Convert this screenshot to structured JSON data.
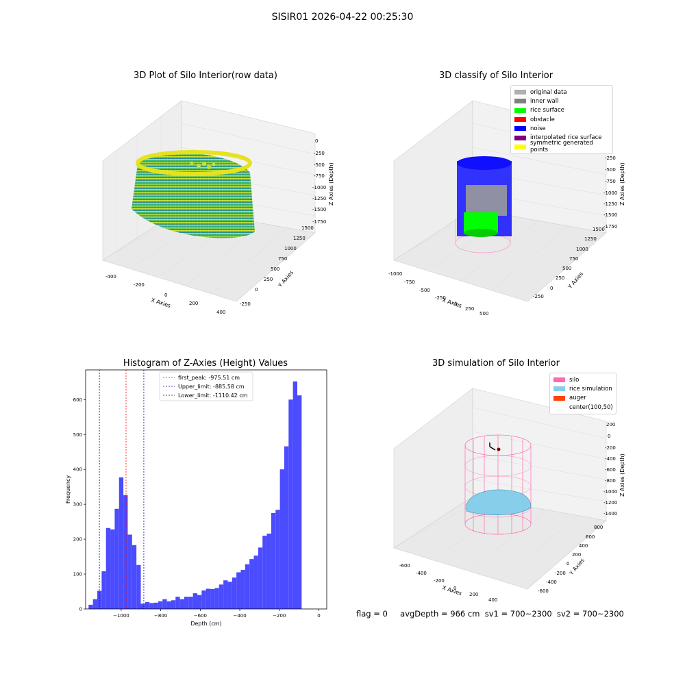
{
  "suptitle": "SISIR01 2026-04-22 00:25:30",
  "panels": {
    "raw": {
      "title": "3D Plot of Silo Interior(row data)",
      "xlabel": "X Axies",
      "ylabel": "Y Axies",
      "zlabel": "Z Axies (Depth)",
      "xticks": [
        "-400",
        "-200",
        "0",
        "200",
        "400"
      ],
      "yticks": [
        "-250",
        "0",
        "250",
        "500",
        "750",
        "1000",
        "1250",
        "1500"
      ],
      "zticks": [
        "0",
        "-250",
        "-500",
        "-750",
        "-1000",
        "-1250",
        "-1500",
        "-1750"
      ]
    },
    "classify": {
      "title": "3D classify of Silo Interior",
      "xlabel": "X Axies",
      "ylabel": "Y Axies",
      "zlabel": "Z Axies (Depth)",
      "xticks": [
        "-1000",
        "-750",
        "-500",
        "-250",
        "0",
        "250",
        "500",
        "750",
        "1000"
      ],
      "yticks": [
        "-250",
        "0",
        "250",
        "500",
        "750",
        "1000",
        "1250",
        "1500"
      ],
      "zticks": [
        "0",
        "-250",
        "-500",
        "-750",
        "-1000",
        "-1250",
        "-1500",
        "-1750"
      ],
      "legend": [
        {
          "label": "original data",
          "color": "#b0b0b0"
        },
        {
          "label": "inner wall",
          "color": "#808080"
        },
        {
          "label": "rice surface",
          "color": "#00ff00"
        },
        {
          "label": "obstacle",
          "color": "#ff0000"
        },
        {
          "label": "noise",
          "color": "#0000ff"
        },
        {
          "label": "interpolated rice surface",
          "color": "#800080"
        },
        {
          "label": "symmetric generated points",
          "color": "#ffff00"
        }
      ]
    },
    "simulation": {
      "title": "3D simulation of Silo Interior",
      "xlabel": "X Axies",
      "ylabel": "Y Axies",
      "zlabel": "Z Axies (Depth)",
      "xticks": [
        "-600",
        "-400",
        "-200",
        "0",
        "200",
        "400",
        "600",
        "800"
      ],
      "yticks": [
        "-600",
        "-400",
        "-200",
        "0",
        "200",
        "400",
        "600",
        "800"
      ],
      "zticks": [
        "200",
        "0",
        "-200",
        "-400",
        "-600",
        "-800",
        "-1000",
        "-1200",
        "-1400"
      ],
      "legend": [
        {
          "label": "silo",
          "color": "#ff69b4"
        },
        {
          "label": "rice simulation",
          "color": "#87ceeb"
        },
        {
          "label": "auger",
          "color": "#ff4500"
        },
        {
          "label": "center(100,50)",
          "color": ""
        }
      ]
    }
  },
  "footer": {
    "flag": "flag = 0",
    "avg": "avgDepth = 966 cm",
    "sv1": "sv1 = 700~2300",
    "sv2": "sv2 = 700~2300"
  },
  "chart_data": [
    {
      "type": "bar",
      "title": "Histogram of Z-Axies (Height) Values",
      "xlabel": "Depth (cm)",
      "ylabel": "Frequency",
      "xlim": [
        -1180,
        40
      ],
      "ylim": [
        0,
        685
      ],
      "xticks": [
        -1000,
        -800,
        -600,
        -400,
        -200,
        0
      ],
      "yticks": [
        0,
        100,
        200,
        300,
        400,
        500,
        600
      ],
      "bin_width": 22,
      "bin_start": -1165,
      "values": [
        12,
        28,
        52,
        108,
        232,
        228,
        287,
        377,
        326,
        213,
        183,
        126,
        15,
        20,
        17,
        18,
        22,
        28,
        22,
        25,
        35,
        28,
        35,
        35,
        45,
        40,
        53,
        58,
        57,
        60,
        70,
        82,
        78,
        90,
        105,
        112,
        128,
        143,
        153,
        176,
        210,
        216,
        275,
        284,
        400,
        466,
        600,
        652,
        612
      ],
      "bar_color": "#4b4bff",
      "legend": [
        {
          "label": "first_peak: -975.51 cm",
          "value": -975.51,
          "color": "#ff0000"
        },
        {
          "label": "Upper_limit: -885.58 cm",
          "value": -885.58,
          "color": "#0000aa"
        },
        {
          "label": "Lower_limit: -1110.42 cm",
          "value": -1110.42,
          "color": "#0000aa"
        }
      ]
    }
  ]
}
